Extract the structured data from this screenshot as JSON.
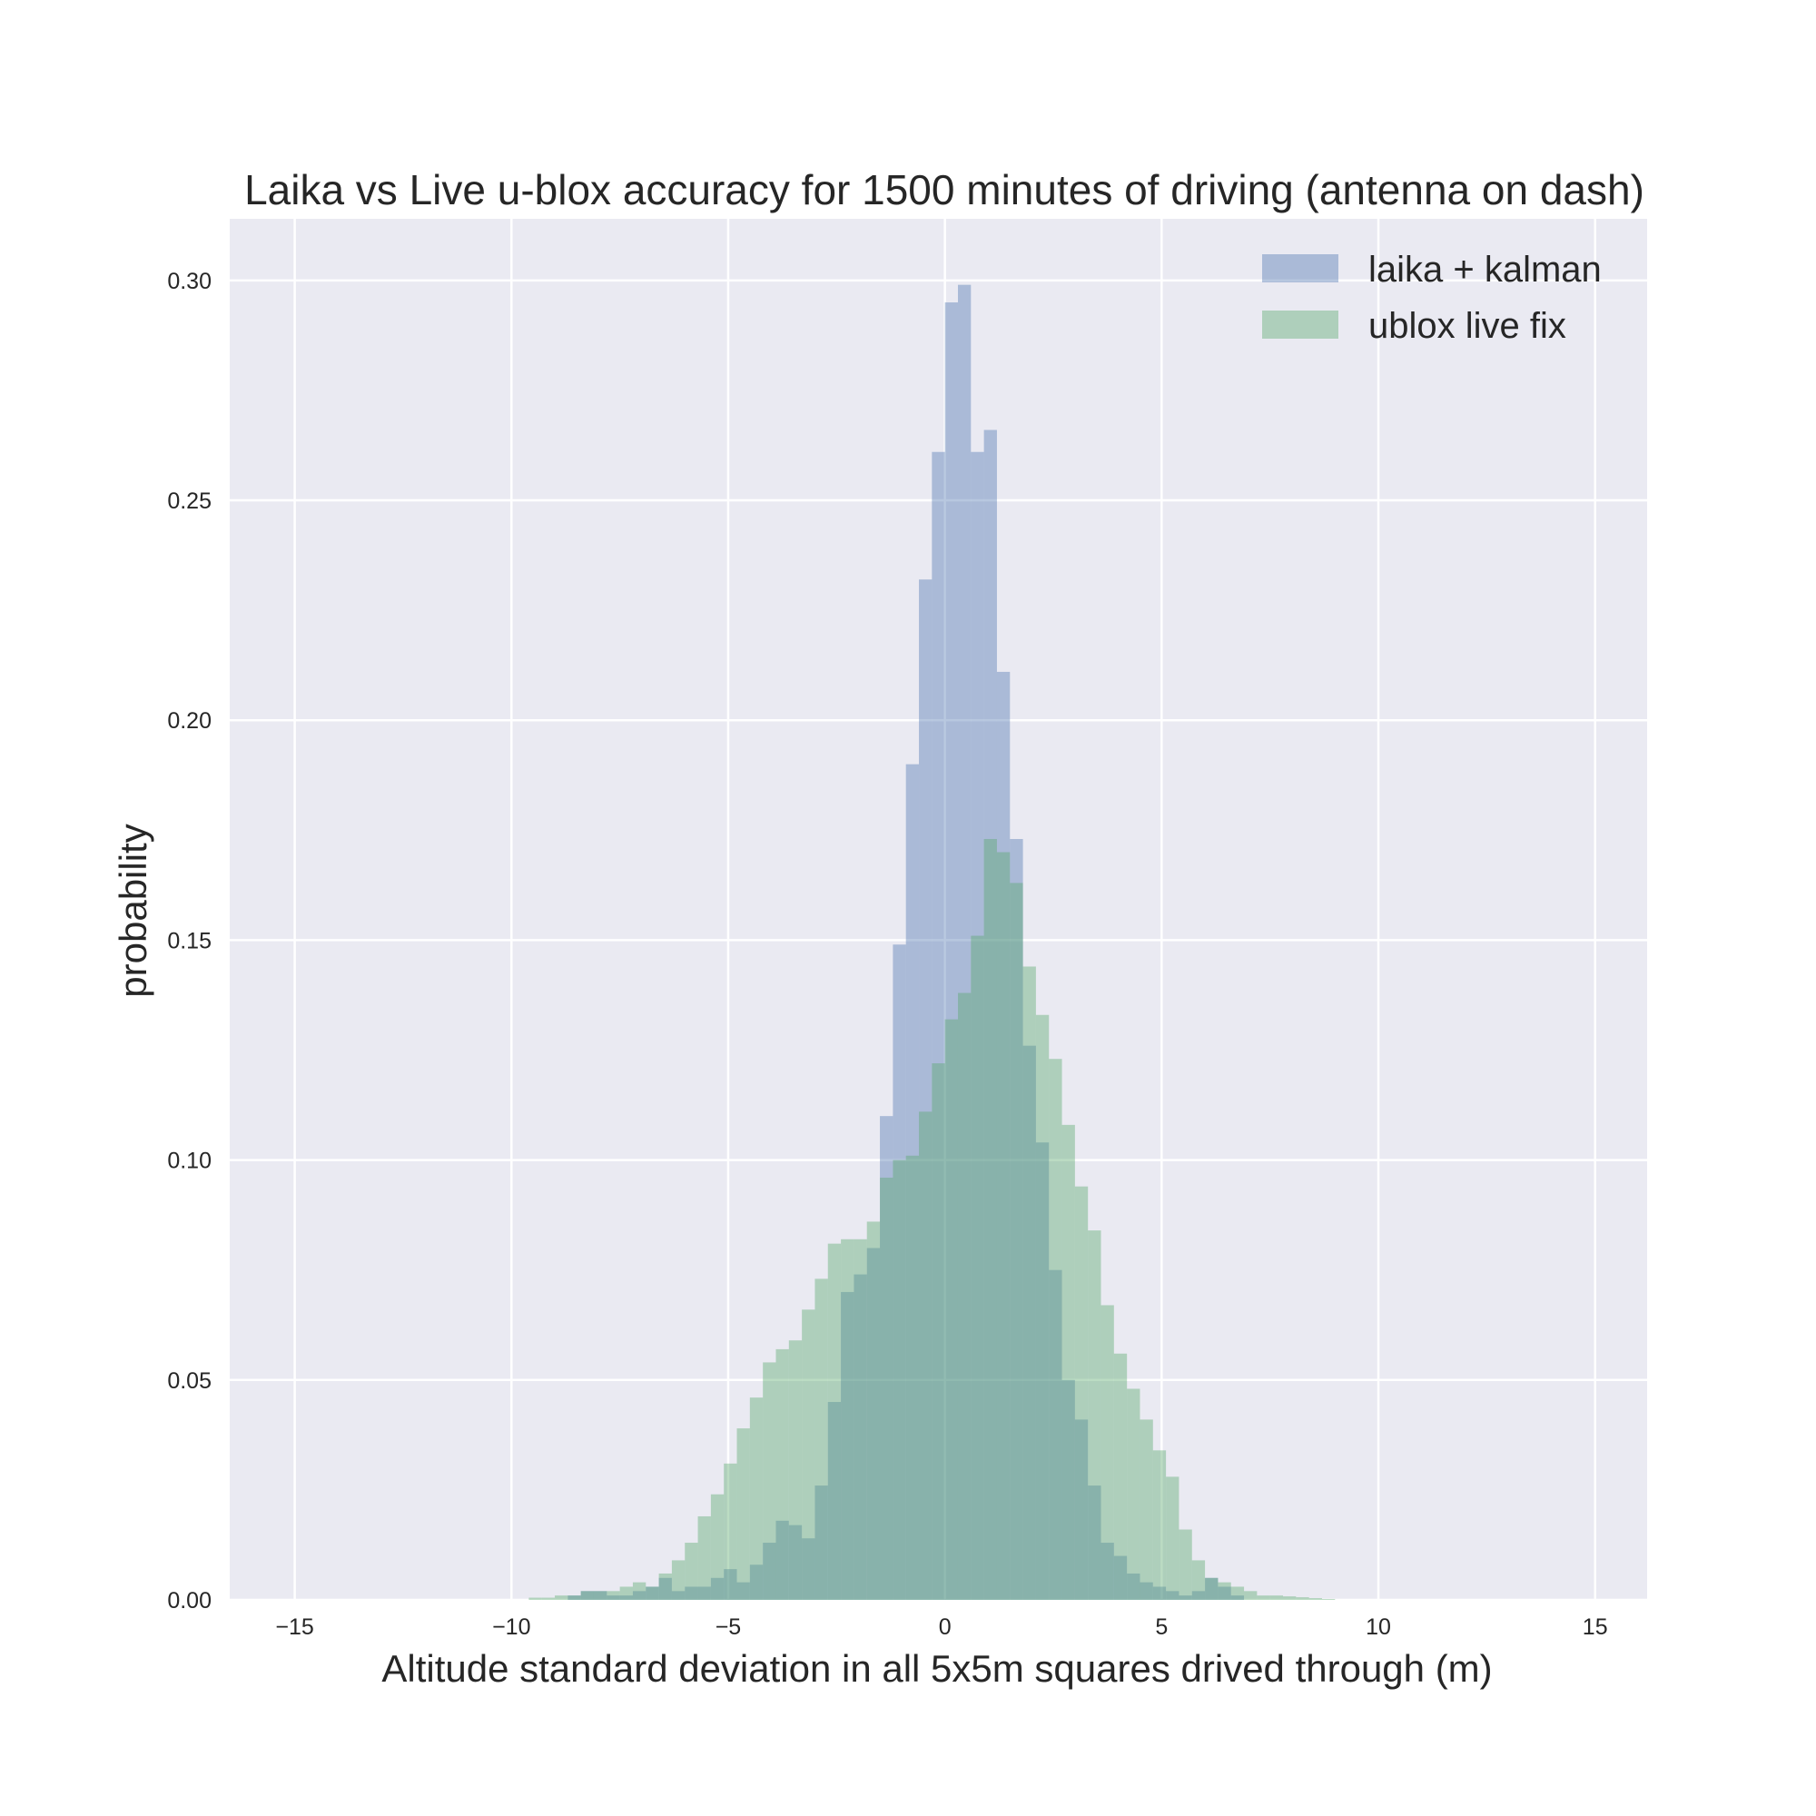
{
  "chart_data": {
    "type": "histogram",
    "title": "Laika vs Live u-blox accuracy for 1500 minutes of driving (antenna on dash)",
    "xlabel": "Altitude standard deviation in all 5x5m squares drived through (m)",
    "ylabel": "probability",
    "xlim": [
      -16.5,
      16.2
    ],
    "ylim": [
      0,
      0.314
    ],
    "xticks": [
      -15,
      -10,
      -5,
      0,
      5,
      10,
      15
    ],
    "xtick_labels": [
      "−15",
      "−10",
      "−5",
      "0",
      "5",
      "10",
      "15"
    ],
    "yticks": [
      0.0,
      0.05,
      0.1,
      0.15,
      0.2,
      0.25,
      0.3
    ],
    "ytick_labels": [
      "0.00",
      "0.05",
      "0.10",
      "0.15",
      "0.20",
      "0.25",
      "0.30"
    ],
    "grid": true,
    "legend_position": "top-right",
    "colors": {
      "background": "#eaeaf2",
      "grid": "#ffffff",
      "text": "#262626"
    },
    "series": [
      {
        "name": "laika + kalman",
        "color": "#4c72b0",
        "opacity": 0.4,
        "bin_width": 0.3,
        "bins": [
          [
            -8.7,
            0.001
          ],
          [
            -8.4,
            0.002
          ],
          [
            -8.1,
            0.002
          ],
          [
            -7.8,
            0.001
          ],
          [
            -7.5,
            0.001
          ],
          [
            -7.2,
            0.002
          ],
          [
            -6.9,
            0.003
          ],
          [
            -6.6,
            0.005
          ],
          [
            -6.3,
            0.002
          ],
          [
            -6.0,
            0.003
          ],
          [
            -5.7,
            0.003
          ],
          [
            -5.4,
            0.005
          ],
          [
            -5.1,
            0.007
          ],
          [
            -4.8,
            0.004
          ],
          [
            -4.5,
            0.008
          ],
          [
            -4.2,
            0.013
          ],
          [
            -3.9,
            0.018
          ],
          [
            -3.6,
            0.017
          ],
          [
            -3.3,
            0.014
          ],
          [
            -3.0,
            0.026
          ],
          [
            -2.7,
            0.045
          ],
          [
            -2.4,
            0.07
          ],
          [
            -2.1,
            0.074
          ],
          [
            -1.8,
            0.08
          ],
          [
            -1.5,
            0.11
          ],
          [
            -1.2,
            0.149
          ],
          [
            -0.9,
            0.19
          ],
          [
            -0.6,
            0.232
          ],
          [
            -0.3,
            0.261
          ],
          [
            0.0,
            0.295
          ],
          [
            0.3,
            0.299
          ],
          [
            0.6,
            0.261
          ],
          [
            0.9,
            0.266
          ],
          [
            1.2,
            0.211
          ],
          [
            1.5,
            0.173
          ],
          [
            1.8,
            0.126
          ],
          [
            2.1,
            0.104
          ],
          [
            2.4,
            0.075
          ],
          [
            2.7,
            0.05
          ],
          [
            3.0,
            0.041
          ],
          [
            3.3,
            0.026
          ],
          [
            3.6,
            0.013
          ],
          [
            3.9,
            0.01
          ],
          [
            4.2,
            0.006
          ],
          [
            4.5,
            0.004
          ],
          [
            4.8,
            0.003
          ],
          [
            5.1,
            0.002
          ],
          [
            5.4,
            0.001
          ],
          [
            5.7,
            0.002
          ],
          [
            6.0,
            0.005
          ],
          [
            6.3,
            0.003
          ],
          [
            6.6,
            0.001
          ]
        ]
      },
      {
        "name": "ublox live fix",
        "color": "#55a868",
        "opacity": 0.4,
        "bin_width": 0.3,
        "bins": [
          [
            -9.6,
            0.0005
          ],
          [
            -9.3,
            0.0005
          ],
          [
            -9.0,
            0.001
          ],
          [
            -8.7,
            0.001
          ],
          [
            -8.4,
            0.002
          ],
          [
            -8.1,
            0.002
          ],
          [
            -7.8,
            0.002
          ],
          [
            -7.5,
            0.003
          ],
          [
            -7.2,
            0.004
          ],
          [
            -6.9,
            0.003
          ],
          [
            -6.6,
            0.006
          ],
          [
            -6.3,
            0.009
          ],
          [
            -6.0,
            0.013
          ],
          [
            -5.7,
            0.019
          ],
          [
            -5.4,
            0.024
          ],
          [
            -5.1,
            0.031
          ],
          [
            -4.8,
            0.039
          ],
          [
            -4.5,
            0.046
          ],
          [
            -4.2,
            0.054
          ],
          [
            -3.9,
            0.057
          ],
          [
            -3.6,
            0.059
          ],
          [
            -3.3,
            0.066
          ],
          [
            -3.0,
            0.073
          ],
          [
            -2.7,
            0.081
          ],
          [
            -2.4,
            0.082
          ],
          [
            -2.1,
            0.082
          ],
          [
            -1.8,
            0.086
          ],
          [
            -1.5,
            0.096
          ],
          [
            -1.2,
            0.1
          ],
          [
            -0.9,
            0.101
          ],
          [
            -0.6,
            0.111
          ],
          [
            -0.3,
            0.122
          ],
          [
            0.0,
            0.132
          ],
          [
            0.3,
            0.138
          ],
          [
            0.6,
            0.151
          ],
          [
            0.9,
            0.173
          ],
          [
            1.2,
            0.17
          ],
          [
            1.5,
            0.163
          ],
          [
            1.8,
            0.144
          ],
          [
            2.1,
            0.133
          ],
          [
            2.4,
            0.123
          ],
          [
            2.7,
            0.108
          ],
          [
            3.0,
            0.094
          ],
          [
            3.3,
            0.084
          ],
          [
            3.6,
            0.067
          ],
          [
            3.9,
            0.056
          ],
          [
            4.2,
            0.048
          ],
          [
            4.5,
            0.041
          ],
          [
            4.8,
            0.034
          ],
          [
            5.1,
            0.028
          ],
          [
            5.4,
            0.016
          ],
          [
            5.7,
            0.009
          ],
          [
            6.0,
            0.005
          ],
          [
            6.3,
            0.004
          ],
          [
            6.6,
            0.003
          ],
          [
            6.9,
            0.002
          ],
          [
            7.2,
            0.001
          ],
          [
            7.5,
            0.001
          ],
          [
            7.8,
            0.0008
          ],
          [
            8.1,
            0.0006
          ],
          [
            8.4,
            0.0004
          ],
          [
            8.7,
            0.0002
          ]
        ]
      }
    ]
  }
}
